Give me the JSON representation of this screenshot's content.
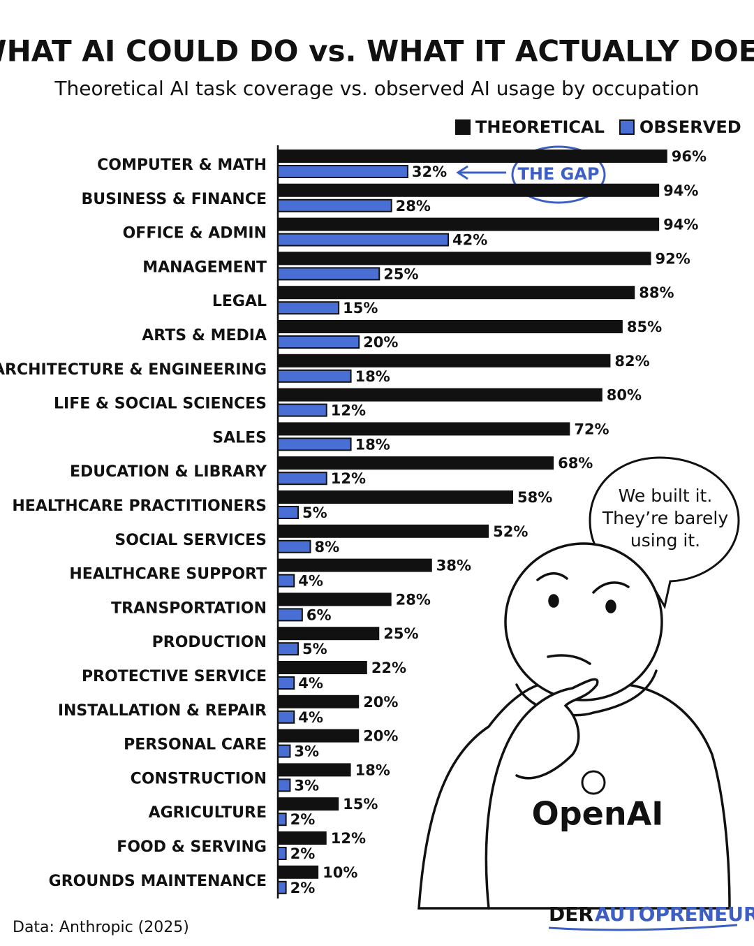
{
  "chart_data": {
    "type": "bar",
    "orientation": "horizontal",
    "title": "WHAT AI COULD DO vs. WHAT IT ACTUALLY DOES",
    "subtitle": "Theoretical AI task coverage vs. observed AI usage by occupation",
    "categories": [
      "COMPUTER & MATH",
      "BUSINESS & FINANCE",
      "OFFICE & ADMIN",
      "MANAGEMENT",
      "LEGAL",
      "ARTS & MEDIA",
      "ARCHITECTURE & ENGINEERING",
      "LIFE & SOCIAL SCIENCES",
      "SALES",
      "EDUCATION & LIBRARY",
      "HEALTHCARE PRACTITIONERS",
      "SOCIAL SERVICES",
      "HEALTHCARE SUPPORT",
      "TRANSPORTATION",
      "PRODUCTION",
      "PROTECTIVE SERVICE",
      "INSTALLATION & REPAIR",
      "PERSONAL CARE",
      "CONSTRUCTION",
      "AGRICULTURE",
      "FOOD & SERVING",
      "GROUNDS MAINTENANCE"
    ],
    "series": [
      {
        "name": "THEORETICAL",
        "color": "#111111",
        "values": [
          96,
          94,
          94,
          92,
          88,
          85,
          82,
          80,
          72,
          68,
          58,
          52,
          38,
          28,
          25,
          22,
          20,
          20,
          18,
          15,
          12,
          10
        ],
        "value_labels": [
          "96%",
          "94%",
          "94%",
          "92%",
          "88%",
          "85%",
          "82%",
          "80%",
          "72%",
          "68%",
          "58%",
          "52%",
          "38%",
          "28%",
          "25%",
          "22%",
          "20%",
          "20%",
          "18%",
          "15%",
          "12%",
          "10%"
        ]
      },
      {
        "name": "OBSERVED",
        "color": "#4a6fd4",
        "values": [
          32,
          28,
          42,
          25,
          15,
          20,
          18,
          12,
          18,
          12,
          5,
          8,
          4,
          6,
          5,
          4,
          4,
          3,
          3,
          2,
          2,
          2
        ],
        "value_labels": [
          "32%",
          "28%",
          "42%",
          "25%",
          "15%",
          "20%",
          "18%",
          "12%",
          "18%",
          "12%",
          "5%",
          "8%",
          "4%",
          "6%",
          "5%",
          "4%",
          "4%",
          "3%",
          "3%",
          "2%",
          "2%",
          "2%"
        ]
      }
    ],
    "xlim": [
      0,
      100
    ],
    "legend": "top-right",
    "annotations": {
      "gap": "THE GAP",
      "speech": [
        "We built it.",
        "They’re barely",
        "using it."
      ],
      "logo": "OpenAI",
      "source": "Data: Anthropic (2025)",
      "brand": [
        "DER",
        "AUTOPRENEUR"
      ]
    }
  }
}
